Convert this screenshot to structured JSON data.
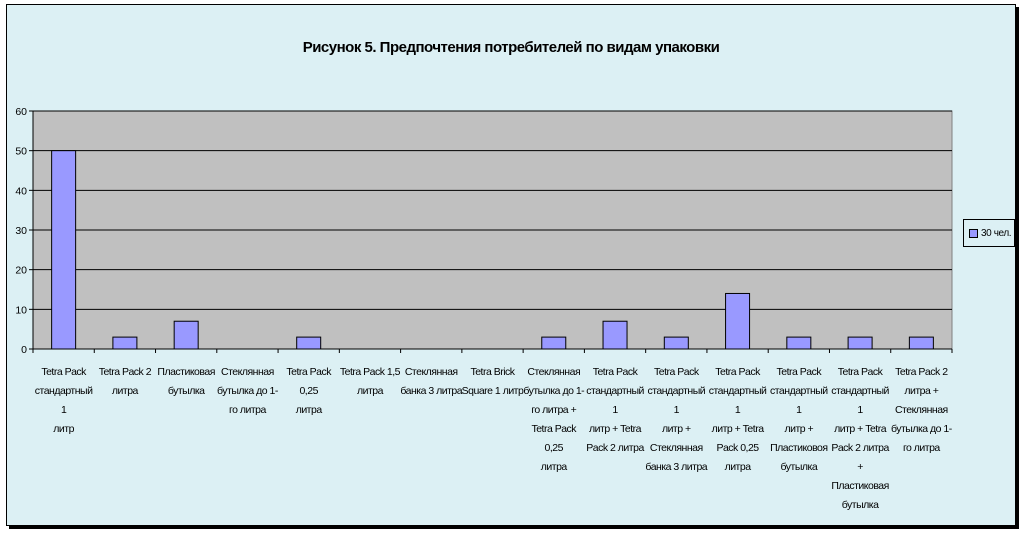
{
  "chart_data": {
    "type": "bar",
    "title": "Рисунок 5. Предпочтения потребителей по видам упаковки",
    "xlabel": "",
    "ylabel": "",
    "ylim": [
      0,
      60
    ],
    "yticks": [
      0,
      10,
      20,
      30,
      40,
      50,
      60
    ],
    "grid": true,
    "legend_position": "right",
    "categories": [
      [
        "Tetra Pack",
        "стандартный 1",
        "литр"
      ],
      [
        "Tetra Pack 2",
        "литра"
      ],
      [
        "Пластиковая",
        "бутылка"
      ],
      [
        "Стеклянная",
        "бутылка до 1-",
        "го литра"
      ],
      [
        "Tetra Pack 0,25",
        "литра"
      ],
      [
        "Tetra Pack 1,5",
        "литра"
      ],
      [
        "Стеклянная",
        "банка 3 литра"
      ],
      [
        "Tetra Brick",
        "Square 1 литр"
      ],
      [
        "Стеклянная",
        "бутылка до 1-",
        "го литра +",
        "Tetra Pack 0,25",
        "литра"
      ],
      [
        "Tetra Pack",
        "стандартный 1",
        "литр + Tetra",
        "Pack 2 литра"
      ],
      [
        "Tetra Pack",
        "стандартный 1",
        "литр +",
        "Стеклянная",
        "банка 3 литра"
      ],
      [
        "Tetra Pack",
        "стандартный 1",
        "литр + Tetra",
        "Pack 0,25",
        "литра"
      ],
      [
        "Tetra Pack",
        "стандартный 1",
        "литр +",
        "Пластиковоя",
        "бутылка"
      ],
      [
        "Tetra Pack",
        "стандартный 1",
        "литр + Tetra",
        "Pack 2 литра +",
        "Пластиковая",
        "бутылка"
      ],
      [
        "Tetra Pack 2",
        "литра +",
        "Стеклянная",
        "бутылка до 1-",
        "го литра"
      ]
    ],
    "series": [
      {
        "name": "30 чел.",
        "values": [
          50,
          3,
          7,
          0,
          3,
          0,
          0,
          0,
          3,
          7,
          3,
          14,
          3,
          3,
          3
        ]
      }
    ],
    "colors": {
      "frame_bg": "#dcf0f4",
      "plot_bg": "#c0c0c0",
      "bar": "#9999ff",
      "gridline": "#000000"
    }
  }
}
